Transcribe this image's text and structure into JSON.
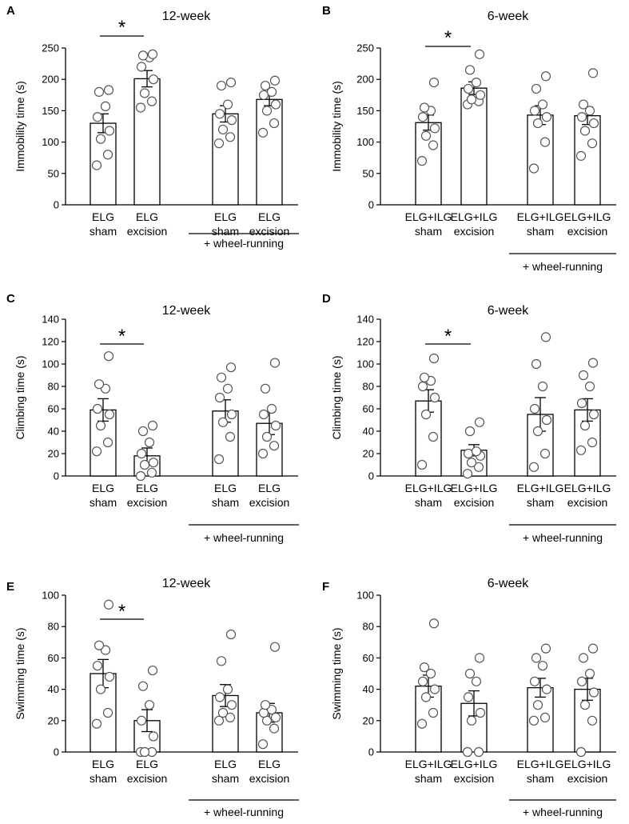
{
  "figure": {
    "group_label": "+ wheel-running"
  },
  "chart_data": [
    {
      "letter": "A",
      "type": "bar",
      "title": "12-week",
      "ylabel": "Immobility time (s)",
      "ylim": [
        0,
        250
      ],
      "yticks": [
        0,
        50,
        100,
        150,
        200,
        250
      ],
      "categories": [
        [
          "ELG",
          "sham"
        ],
        [
          "ELG",
          "excision"
        ],
        [
          "ELG",
          "sham"
        ],
        [
          "ELG",
          "excision"
        ]
      ],
      "values": [
        130,
        201,
        145,
        168
      ],
      "errors": [
        15,
        13,
        13,
        10
      ],
      "points": [
        [
          63,
          80,
          105,
          118,
          140,
          157,
          180,
          183
        ],
        [
          155,
          165,
          178,
          200,
          220,
          235,
          238,
          240
        ],
        [
          98,
          108,
          120,
          135,
          145,
          160,
          190,
          195
        ],
        [
          115,
          130,
          150,
          160,
          175,
          180,
          190,
          198
        ]
      ],
      "significance": {
        "label": "*",
        "between": [
          0,
          1
        ]
      }
    },
    {
      "letter": "B",
      "type": "bar",
      "title": "6-week",
      "ylabel": "Immobility time (s)",
      "ylim": [
        0,
        250
      ],
      "yticks": [
        0,
        50,
        100,
        150,
        200,
        250
      ],
      "categories": [
        [
          "ELG+ILG",
          "sham"
        ],
        [
          "ELG+ILG",
          "excision"
        ],
        [
          "ELG+ILG",
          "sham"
        ],
        [
          "ELG+ILG",
          "excision"
        ]
      ],
      "values": [
        131,
        186,
        143,
        142
      ],
      "errors": [
        12,
        10,
        15,
        14
      ],
      "points": [
        [
          70,
          95,
          110,
          122,
          140,
          150,
          155,
          195
        ],
        [
          160,
          165,
          168,
          175,
          185,
          195,
          215,
          240
        ],
        [
          58,
          100,
          130,
          140,
          150,
          160,
          185,
          205
        ],
        [
          78,
          98,
          118,
          130,
          140,
          150,
          160,
          210
        ]
      ],
      "significance": {
        "label": "*",
        "between": [
          0,
          1
        ]
      }
    },
    {
      "letter": "C",
      "type": "bar",
      "title": "12-week",
      "ylabel": "Climbing time (s)",
      "ylim": [
        0,
        140
      ],
      "yticks": [
        0,
        20,
        40,
        60,
        80,
        100,
        120,
        140
      ],
      "categories": [
        [
          "ELG",
          "sham"
        ],
        [
          "ELG",
          "excision"
        ],
        [
          "ELG",
          "sham"
        ],
        [
          "ELG",
          "excision"
        ]
      ],
      "values": [
        59,
        18,
        58,
        47
      ],
      "errors": [
        10,
        7,
        10,
        10
      ],
      "points": [
        [
          22,
          30,
          45,
          55,
          60,
          78,
          82,
          107
        ],
        [
          0,
          3,
          10,
          12,
          20,
          30,
          40,
          45
        ],
        [
          15,
          35,
          48,
          55,
          70,
          78,
          88,
          97
        ],
        [
          20,
          27,
          35,
          45,
          55,
          60,
          78,
          101
        ]
      ],
      "significance": {
        "label": "*",
        "between": [
          0,
          1
        ]
      }
    },
    {
      "letter": "D",
      "type": "bar",
      "title": "6-week",
      "ylabel": "Climbing time (s)",
      "ylim": [
        0,
        140
      ],
      "yticks": [
        0,
        20,
        40,
        60,
        80,
        100,
        120,
        140
      ],
      "categories": [
        [
          "ELG+ILG",
          "sham"
        ],
        [
          "ELG+ILG",
          "excision"
        ],
        [
          "ELG+ILG",
          "sham"
        ],
        [
          "ELG+ILG",
          "excision"
        ]
      ],
      "values": [
        67,
        23,
        55,
        59
      ],
      "errors": [
        10,
        5,
        15,
        10
      ],
      "points": [
        [
          10,
          35,
          55,
          70,
          80,
          85,
          88,
          105
        ],
        [
          2,
          8,
          12,
          18,
          20,
          22,
          40,
          48
        ],
        [
          8,
          20,
          40,
          50,
          60,
          80,
          100,
          124
        ],
        [
          23,
          30,
          45,
          55,
          65,
          80,
          90,
          101
        ]
      ],
      "significance": {
        "label": "*",
        "between": [
          0,
          1
        ]
      }
    },
    {
      "letter": "E",
      "type": "bar",
      "title": "12-week",
      "ylabel": "Swimming time (s)",
      "ylim": [
        0,
        100
      ],
      "yticks": [
        0,
        20,
        40,
        60,
        80,
        100
      ],
      "categories": [
        [
          "ELG",
          "sham"
        ],
        [
          "ELG",
          "excision"
        ],
        [
          "ELG",
          "sham"
        ],
        [
          "ELG",
          "excision"
        ]
      ],
      "values": [
        50,
        20,
        36,
        25
      ],
      "errors": [
        9,
        7,
        7,
        6
      ],
      "points": [
        [
          18,
          25,
          40,
          48,
          55,
          65,
          68,
          94
        ],
        [
          0,
          0,
          0,
          10,
          20,
          30,
          42,
          52
        ],
        [
          20,
          22,
          25,
          30,
          35,
          40,
          58,
          75
        ],
        [
          5,
          15,
          20,
          22,
          25,
          27,
          30,
          67
        ]
      ],
      "significance": {
        "label": "*",
        "between": [
          0,
          1
        ]
      }
    },
    {
      "letter": "F",
      "type": "bar",
      "title": "6-week",
      "ylabel": "Swimming time (s)",
      "ylim": [
        0,
        100
      ],
      "yticks": [
        0,
        20,
        40,
        60,
        80,
        100
      ],
      "categories": [
        [
          "ELG+ILG",
          "sham"
        ],
        [
          "ELG+ILG",
          "excision"
        ],
        [
          "ELG+ILG",
          "sham"
        ],
        [
          "ELG+ILG",
          "excision"
        ]
      ],
      "values": [
        42,
        31,
        41,
        40
      ],
      "errors": [
        7,
        8,
        6,
        7
      ],
      "points": [
        [
          18,
          25,
          35,
          40,
          45,
          50,
          54,
          82
        ],
        [
          0,
          0,
          20,
          25,
          35,
          45,
          50,
          60
        ],
        [
          20,
          22,
          30,
          40,
          45,
          55,
          60,
          66
        ],
        [
          0,
          20,
          30,
          38,
          45,
          50,
          60,
          66
        ]
      ],
      "significance": null
    }
  ]
}
